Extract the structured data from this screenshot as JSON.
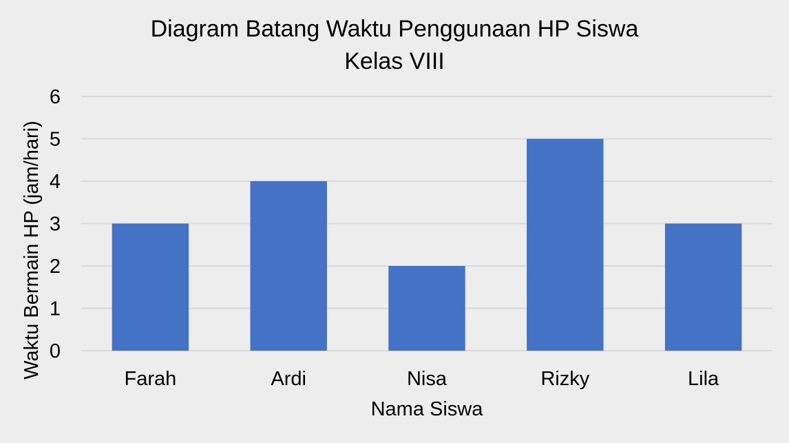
{
  "chart_data": {
    "type": "bar",
    "title_lines": [
      "Diagram Batang Waktu Penggunaan HP Siswa",
      "Kelas VIII"
    ],
    "xlabel": "Nama Siswa",
    "ylabel": "Waktu Bermain HP (jam/hari)",
    "categories": [
      "Farah",
      "Ardi",
      "Nisa",
      "Rizky",
      "Lila"
    ],
    "values": [
      3,
      4,
      2,
      5,
      3
    ],
    "ylim": [
      0,
      6
    ],
    "yticks": [
      "0",
      "1",
      "2",
      "3",
      "4",
      "5",
      "6"
    ],
    "grid": true,
    "legend": "none",
    "colors": {
      "bar": "#4472c4",
      "grid": "#d9d9d9",
      "background": "#ededed"
    }
  }
}
